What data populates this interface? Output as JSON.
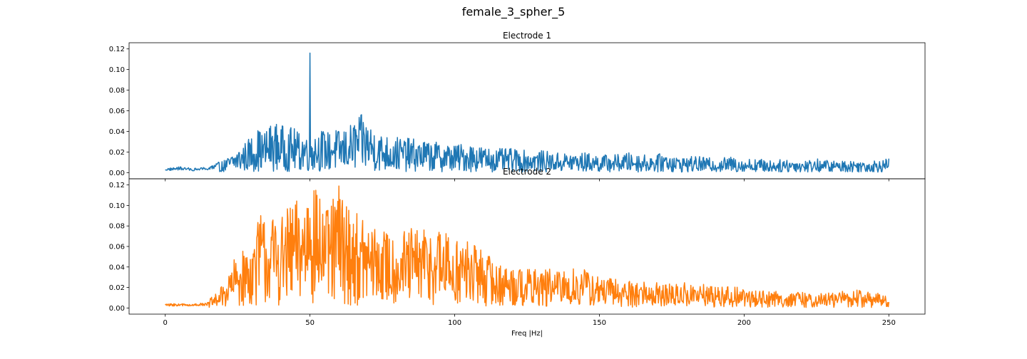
{
  "figure": {
    "title": "female_3_spher_5"
  },
  "chart_data": [
    {
      "type": "line",
      "title": "Electrode 1",
      "xlabel": "",
      "ylabel": "",
      "xlim": [
        -12.5,
        262.5
      ],
      "ylim": [
        -0.006,
        0.126
      ],
      "xticks": [
        0,
        50,
        100,
        150,
        200,
        250
      ],
      "yticks": [
        0.0,
        0.02,
        0.04,
        0.06,
        0.08,
        0.1,
        0.12
      ],
      "ytick_labels": [
        "0.00",
        "0.02",
        "0.04",
        "0.06",
        "0.08",
        "0.10",
        "0.12"
      ],
      "xtick_labels_visible": false,
      "grid": false,
      "series": [
        {
          "color": "#1f77b4",
          "x": [
            0,
            5,
            10,
            15,
            18,
            20,
            22,
            24,
            26,
            28,
            30,
            32,
            34,
            36,
            38,
            40,
            42,
            44,
            46,
            48,
            49.5,
            50,
            50.5,
            52,
            54,
            56,
            58,
            60,
            62,
            64,
            66,
            68,
            70,
            72,
            75,
            80,
            85,
            90,
            95,
            100,
            105,
            110,
            115,
            120,
            125,
            130,
            135,
            140,
            145,
            150,
            155,
            160,
            165,
            170,
            174,
            176,
            180,
            185,
            190,
            195,
            200,
            205,
            210,
            215,
            220,
            225,
            230,
            235,
            240,
            245,
            250
          ],
          "y": [
            0.003,
            0.004,
            0.003,
            0.004,
            0.005,
            0.006,
            0.008,
            0.011,
            0.013,
            0.016,
            0.019,
            0.022,
            0.02,
            0.024,
            0.025,
            0.024,
            0.022,
            0.023,
            0.02,
            0.021,
            0.022,
            0.116,
            0.024,
            0.021,
            0.022,
            0.02,
            0.023,
            0.021,
            0.022,
            0.024,
            0.027,
            0.029,
            0.026,
            0.023,
            0.019,
            0.018,
            0.017,
            0.016,
            0.015,
            0.014,
            0.015,
            0.013,
            0.012,
            0.012,
            0.011,
            0.011,
            0.01,
            0.01,
            0.01,
            0.009,
            0.009,
            0.01,
            0.009,
            0.009,
            0.011,
            0.008,
            0.008,
            0.008,
            0.007,
            0.008,
            0.007,
            0.007,
            0.006,
            0.007,
            0.006,
            0.007,
            0.006,
            0.006,
            0.006,
            0.006,
            0.007
          ]
        }
      ]
    },
    {
      "type": "line",
      "title": "Electrode 2",
      "xlabel": "Freq |Hz|",
      "ylabel": "",
      "xlim": [
        -12.5,
        262.5
      ],
      "ylim": [
        -0.006,
        0.126
      ],
      "xticks": [
        0,
        50,
        100,
        150,
        200,
        250
      ],
      "xtick_labels": [
        "0",
        "50",
        "100",
        "150",
        "200",
        "250"
      ],
      "yticks": [
        0.0,
        0.02,
        0.04,
        0.06,
        0.08,
        0.1,
        0.12
      ],
      "ytick_labels": [
        "0.00",
        "0.02",
        "0.04",
        "0.06",
        "0.08",
        "0.10",
        "0.12"
      ],
      "grid": false,
      "series": [
        {
          "color": "#ff7f0e",
          "x": [
            0,
            5,
            10,
            15,
            18,
            20,
            22,
            24,
            26,
            28,
            30,
            32,
            33,
            34,
            36,
            38,
            40,
            42,
            44,
            46,
            48,
            49.5,
            50,
            50.5,
            52,
            54,
            56,
            58,
            59.5,
            60,
            60.5,
            62,
            64,
            66,
            68,
            70,
            72,
            75,
            80,
            85,
            90,
            95,
            100,
            105,
            110,
            115,
            120,
            125,
            130,
            135,
            140,
            145,
            150,
            155,
            160,
            165,
            170,
            175,
            180,
            185,
            190,
            195,
            200,
            205,
            210,
            215,
            220,
            225,
            230,
            235,
            240,
            245,
            250
          ],
          "y": [
            0.003,
            0.003,
            0.003,
            0.004,
            0.008,
            0.012,
            0.018,
            0.025,
            0.028,
            0.03,
            0.034,
            0.045,
            0.09,
            0.05,
            0.045,
            0.048,
            0.046,
            0.05,
            0.052,
            0.055,
            0.058,
            0.07,
            0.12,
            0.08,
            0.06,
            0.058,
            0.05,
            0.055,
            0.06,
            0.119,
            0.065,
            0.055,
            0.05,
            0.048,
            0.045,
            0.043,
            0.042,
            0.04,
            0.038,
            0.04,
            0.042,
            0.04,
            0.036,
            0.034,
            0.03,
            0.022,
            0.022,
            0.02,
            0.02,
            0.019,
            0.02,
            0.02,
            0.016,
            0.015,
            0.014,
            0.014,
            0.013,
            0.012,
            0.013,
            0.012,
            0.011,
            0.011,
            0.01,
            0.009,
            0.009,
            0.008,
            0.008,
            0.007,
            0.008,
            0.009,
            0.009,
            0.008,
            0.006
          ]
        }
      ]
    }
  ]
}
